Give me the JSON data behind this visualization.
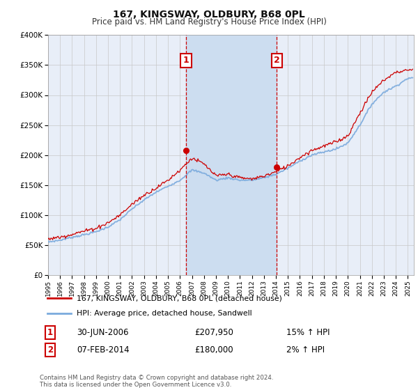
{
  "title": "167, KINGSWAY, OLDBURY, B68 0PL",
  "subtitle": "Price paid vs. HM Land Registry's House Price Index (HPI)",
  "legend_line1": "167, KINGSWAY, OLDBURY, B68 0PL (detached house)",
  "legend_line2": "HPI: Average price, detached house, Sandwell",
  "annotation1": {
    "label": "1",
    "date": "30-JUN-2006",
    "price": "£207,950",
    "hpi": "15% ↑ HPI",
    "x_year": 2006.5
  },
  "annotation2": {
    "label": "2",
    "date": "07-FEB-2014",
    "price": "£180,000",
    "hpi": "2% ↑ HPI",
    "x_year": 2014.08
  },
  "sale1_value": 207950,
  "sale1_year": 2006.5,
  "sale2_value": 180000,
  "sale2_year": 2014.08,
  "ylim": [
    0,
    400000
  ],
  "xlim_start": 1995.0,
  "xlim_end": 2025.5,
  "background_color": "#ffffff",
  "plot_bg_color": "#e8eef8",
  "grid_color": "#c8c8c8",
  "hpi_color": "#7aaadd",
  "price_color": "#cc0000",
  "annotation_shade_color": "#ccddf0",
  "footer": "Contains HM Land Registry data © Crown copyright and database right 2024.\nThis data is licensed under the Open Government Licence v3.0.",
  "yticks": [
    0,
    50000,
    100000,
    150000,
    200000,
    250000,
    300000,
    350000,
    400000
  ],
  "ytick_labels": [
    "£0",
    "£50K",
    "£100K",
    "£150K",
    "£200K",
    "£250K",
    "£300K",
    "£350K",
    "£400K"
  ]
}
